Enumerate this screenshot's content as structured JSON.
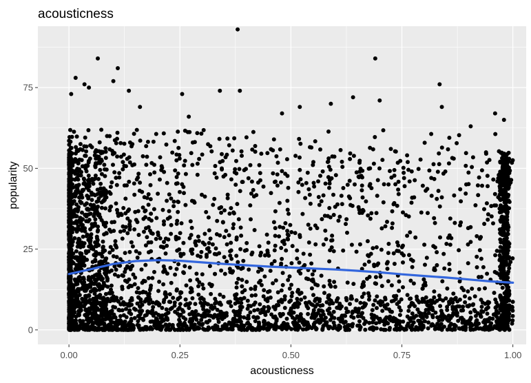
{
  "chart_data": {
    "type": "scatter",
    "title": "acousticness",
    "xlabel": "acousticness",
    "ylabel": "popularity",
    "xlim": [
      -0.07,
      1.03
    ],
    "ylim": [
      -4.5,
      94
    ],
    "x_ticks": [
      0,
      0.25,
      0.5,
      0.75,
      1
    ],
    "x_tick_labels": [
      "0.00",
      "0.25",
      "0.50",
      "0.75",
      "1.00"
    ],
    "y_ticks": [
      0,
      25,
      50,
      75
    ],
    "y_tick_labels": [
      "0",
      "25",
      "50",
      "75"
    ],
    "grid": true,
    "legend": "none",
    "panel_background": "#ebebeb",
    "grid_color": "#ffffff",
    "point_color": "#000000",
    "smooth_color": "#3366dd",
    "outlier_points": [
      {
        "x": 0.38,
        "y": 93
      },
      {
        "x": 0.065,
        "y": 84
      },
      {
        "x": 0.69,
        "y": 84
      },
      {
        "x": 0.11,
        "y": 81
      },
      {
        "x": 0.015,
        "y": 78
      },
      {
        "x": 0.1,
        "y": 77
      },
      {
        "x": 0.035,
        "y": 76
      },
      {
        "x": 0.835,
        "y": 76
      },
      {
        "x": 0.045,
        "y": 75
      },
      {
        "x": 0.135,
        "y": 74
      },
      {
        "x": 0.34,
        "y": 74
      },
      {
        "x": 0.005,
        "y": 73
      },
      {
        "x": 0.255,
        "y": 73
      },
      {
        "x": 0.385,
        "y": 74
      },
      {
        "x": 0.59,
        "y": 70
      },
      {
        "x": 0.64,
        "y": 72
      },
      {
        "x": 0.7,
        "y": 71
      },
      {
        "x": 0.96,
        "y": 67
      },
      {
        "x": 0.98,
        "y": 65
      },
      {
        "x": 0.905,
        "y": 63
      },
      {
        "x": 0.84,
        "y": 69
      },
      {
        "x": 0.48,
        "y": 67
      },
      {
        "x": 0.52,
        "y": 69
      },
      {
        "x": 0.27,
        "y": 66
      },
      {
        "x": 0.16,
        "y": 69
      }
    ],
    "smooth_line": {
      "x": [
        0,
        0.05,
        0.1,
        0.15,
        0.2,
        0.25,
        0.3,
        0.35,
        0.4,
        0.45,
        0.5,
        0.55,
        0.6,
        0.65,
        0.7,
        0.75,
        0.8,
        0.85,
        0.9,
        0.95,
        1.0
      ],
      "y": [
        17.3,
        18.8,
        20.4,
        21.3,
        21.6,
        21.4,
        20.9,
        20.4,
        20.0,
        19.6,
        19.3,
        19.0,
        18.7,
        18.3,
        17.8,
        17.2,
        16.7,
        16.2,
        15.6,
        15.0,
        14.6
      ]
    }
  }
}
